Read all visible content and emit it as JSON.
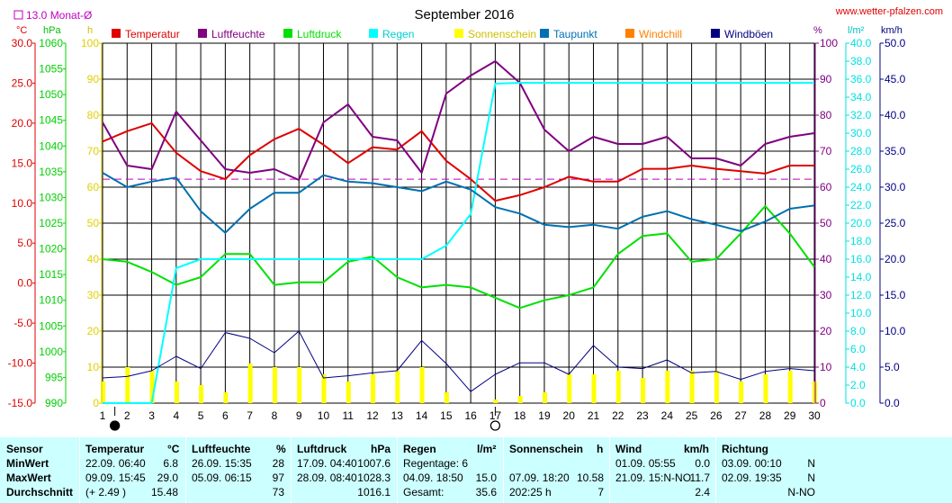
{
  "header": {
    "title": "September 2016",
    "website": "www.wetter-pfalzen.com",
    "month_avg_label": "13.0 Monat-Ø"
  },
  "axis_units": {
    "temp": "°C",
    "pressure": "hPa",
    "sunshine": "h",
    "humidity": "%",
    "rain": "l/m²",
    "wind": "km/h"
  },
  "legend": [
    {
      "label": "Temperatur",
      "color": "#e00000"
    },
    {
      "label": "Luftfeuchte",
      "color": "#800080"
    },
    {
      "label": "Luftdruck",
      "color": "#00e000"
    },
    {
      "label": "Regen",
      "color": "#00ffff"
    },
    {
      "label": "Sonnenschein",
      "color": "#ffff00"
    },
    {
      "label": "Taupunkt",
      "color": "#0070b0"
    },
    {
      "label": "Windchill",
      "color": "#ff8000"
    },
    {
      "label": "Windböen",
      "color": "#000080"
    }
  ],
  "chart_data": {
    "type": "line",
    "title": "September 2016",
    "x": [
      1,
      2,
      3,
      4,
      5,
      6,
      7,
      8,
      9,
      10,
      11,
      12,
      13,
      14,
      15,
      16,
      17,
      18,
      19,
      20,
      21,
      22,
      23,
      24,
      25,
      26,
      27,
      28,
      29,
      30
    ],
    "axes": {
      "temp": {
        "min": -15,
        "max": 30,
        "ticks": [
          "30.0",
          "25.0",
          "20.0",
          "15.0",
          "10.0",
          "5.0",
          "0.0",
          "-5.0",
          "-10.0",
          "-15.0"
        ]
      },
      "pressure": {
        "min": 990,
        "max": 1060,
        "ticks": [
          "1060",
          "1055",
          "1050",
          "1045",
          "1040",
          "1035",
          "1030",
          "1025",
          "1020",
          "1015",
          "1010",
          "1005",
          "1000",
          "995",
          "990"
        ]
      },
      "sunshine": {
        "min": 0,
        "max": 100,
        "ticks": [
          "100",
          "90",
          "80",
          "70",
          "60",
          "50",
          "40",
          "30",
          "20",
          "10",
          "0"
        ]
      },
      "humidity": {
        "min": 0,
        "max": 100,
        "ticks": [
          "100",
          "90",
          "80",
          "70",
          "60",
          "50",
          "40",
          "30",
          "20",
          "10",
          "0"
        ]
      },
      "rain": {
        "min": 0,
        "max": 40,
        "ticks": [
          "40.0",
          "38.0",
          "36.0",
          "34.0",
          "32.0",
          "30.0",
          "28.0",
          "26.0",
          "24.0",
          "22.0",
          "20.0",
          "18.0",
          "16.0",
          "14.0",
          "12.0",
          "10.0",
          "8.0",
          "6.0",
          "4.0",
          "2.0",
          "0.0"
        ]
      },
      "wind": {
        "min": 0,
        "max": 50,
        "ticks": [
          "50.0",
          "45.0",
          "40.0",
          "35.0",
          "30.0",
          "25.0",
          "20.0",
          "15.0",
          "10.0",
          "5.0",
          "0.0"
        ]
      }
    },
    "month_avg_temp": 13.0,
    "series": [
      {
        "name": "Temperatur",
        "axis": "temp",
        "color": "#e00000",
        "values": [
          17.7,
          19.0,
          20.0,
          16.3,
          14.0,
          13.0,
          16.0,
          18.0,
          19.3,
          17.3,
          15.0,
          17.0,
          16.7,
          19.0,
          15.3,
          13.0,
          10.3,
          11.0,
          12.0,
          13.3,
          12.7,
          12.7,
          14.3,
          14.3,
          14.7,
          14.3,
          14.0,
          13.7,
          14.7,
          14.7
        ]
      },
      {
        "name": "Luftfeuchte",
        "axis": "humidity",
        "color": "#800080",
        "values": [
          78,
          66,
          65,
          81,
          73,
          65,
          64,
          65,
          62,
          78,
          83,
          74,
          73,
          64,
          86,
          91,
          95,
          89,
          76,
          70,
          74,
          72,
          72,
          74,
          68,
          68,
          66,
          72,
          74,
          75
        ]
      },
      {
        "name": "Luftdruck",
        "axis": "pressure",
        "color": "#00e000",
        "values": [
          1018.0,
          1017.5,
          1015.5,
          1013.0,
          1014.5,
          1019.0,
          1019.0,
          1013.0,
          1013.5,
          1013.5,
          1017.5,
          1018.5,
          1014.5,
          1012.5,
          1013.0,
          1012.5,
          1010.5,
          1008.5,
          1010.0,
          1011.0,
          1012.5,
          1019.0,
          1022.5,
          1023.0,
          1017.5,
          1018.0,
          1023.0,
          1028.3,
          1023.0,
          1016.5
        ]
      },
      {
        "name": "Regen",
        "axis": "rain",
        "color": "#00ffff",
        "values": [
          0.0,
          0.0,
          0.0,
          15.0,
          16.0,
          16.0,
          16.0,
          16.0,
          16.0,
          16.0,
          16.0,
          16.0,
          16.0,
          16.0,
          17.5,
          21.0,
          35.5,
          35.6,
          35.6,
          35.6,
          35.6,
          35.6,
          35.6,
          35.6,
          35.6,
          35.6,
          35.6,
          35.6,
          35.6,
          35.6
        ]
      },
      {
        "name": "Sonnenschein",
        "axis": "sunshine",
        "color": "#ffff00",
        "values": [
          6,
          10,
          9,
          6,
          5,
          3,
          11,
          10,
          10,
          8,
          6,
          8,
          9,
          10,
          3,
          0,
          1,
          2,
          3,
          8,
          8,
          9,
          7,
          9,
          9,
          9,
          6,
          8,
          9,
          6
        ]
      },
      {
        "name": "Taupunkt",
        "axis": "temp",
        "color": "#0070b0",
        "values": [
          13.8,
          12.0,
          12.7,
          13.2,
          9.0,
          6.3,
          9.3,
          11.3,
          11.3,
          13.5,
          12.7,
          12.5,
          12.0,
          11.5,
          12.7,
          11.7,
          9.5,
          8.7,
          7.3,
          7.0,
          7.3,
          6.8,
          8.3,
          9.0,
          8.0,
          7.3,
          6.5,
          7.7,
          9.3,
          9.7
        ]
      },
      {
        "name": "Windböen",
        "axis": "wind",
        "color": "#000080",
        "values": [
          3.5,
          3.7,
          4.5,
          6.5,
          4.8,
          9.8,
          9.0,
          7.0,
          10.0,
          3.5,
          3.8,
          4.2,
          4.5,
          8.7,
          5.5,
          1.6,
          4.0,
          5.6,
          5.6,
          4.0,
          8.0,
          5.0,
          4.8,
          6.0,
          4.2,
          4.4,
          3.3,
          4.4,
          4.8,
          4.5
        ]
      }
    ],
    "markers": [
      {
        "label": "new-moon",
        "x": 1.5
      },
      {
        "label": "full-moon",
        "x": 17
      }
    ]
  },
  "stats_table": {
    "columns": [
      {
        "title": "Sensor"
      },
      {
        "title": "Temperatur",
        "unit": "°C"
      },
      {
        "title": "Luftfeuchte",
        "unit": "%"
      },
      {
        "title": "Luftdruck",
        "unit": "hPa"
      },
      {
        "title": "Regen",
        "unit": "l/m²"
      },
      {
        "title": "Sonnenschein",
        "unit": "h"
      },
      {
        "title": "Wind",
        "unit": "km/h"
      },
      {
        "title": "Richtung"
      }
    ],
    "rows": [
      {
        "label": "MinWert",
        "cells": [
          [
            "22.09.  06:40",
            "6.8"
          ],
          [
            "26.09.  15:35",
            "28"
          ],
          [
            "17.09.  04:40",
            "1007.6"
          ],
          [
            "Regentage: 6",
            ""
          ],
          [
            "",
            ""
          ],
          [
            "01.09.  05:55",
            "0.0"
          ],
          [
            "03.09.  00:10",
            "N"
          ]
        ]
      },
      {
        "label": "MaxWert",
        "cells": [
          [
            "09.09.  15:45",
            "29.0"
          ],
          [
            "05.09.  06:15",
            "97"
          ],
          [
            "28.09.  08:40",
            "1028.3"
          ],
          [
            "04.09.  18:50",
            "15.0"
          ],
          [
            "07.09.  18:20",
            "10.58"
          ],
          [
            "21.09.  15:N-NO",
            "11.7"
          ],
          [
            "02.09.  19:35",
            "N"
          ]
        ]
      },
      {
        "label": "Durchschnitt",
        "cells": [
          [
            "(+ 2.49 )",
            "15.48"
          ],
          [
            "",
            "73"
          ],
          [
            "",
            "1016.1"
          ],
          [
            "Gesamt:",
            "35.6"
          ],
          [
            "202:25 h",
            "7"
          ],
          [
            "",
            "2.4"
          ],
          [
            "",
            "N-NO"
          ]
        ]
      }
    ]
  }
}
